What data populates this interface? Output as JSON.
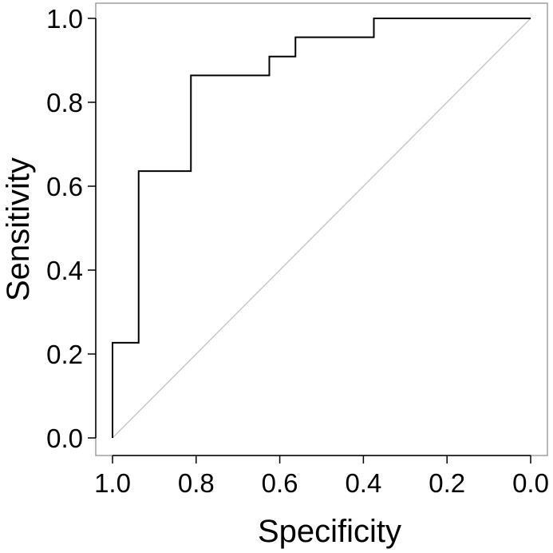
{
  "chart_data": {
    "type": "line",
    "title": "",
    "xlabel": "Specificity",
    "ylabel": "Sensitivity",
    "xlim": [
      1.0,
      0.0
    ],
    "ylim": [
      0.0,
      1.0
    ],
    "x_reversed": true,
    "grid": false,
    "legend": "none",
    "x_ticks": [
      {
        "value": 1.0,
        "label": "1.0"
      },
      {
        "value": 0.8,
        "label": "0.8"
      },
      {
        "value": 0.6,
        "label": "0.6"
      },
      {
        "value": 0.4,
        "label": "0.4"
      },
      {
        "value": 0.2,
        "label": "0.2"
      },
      {
        "value": 0.0,
        "label": "0.0"
      }
    ],
    "y_ticks": [
      {
        "value": 0.0,
        "label": "0.0"
      },
      {
        "value": 0.2,
        "label": "0.2"
      },
      {
        "value": 0.4,
        "label": "0.4"
      },
      {
        "value": 0.6,
        "label": "0.6"
      },
      {
        "value": 0.8,
        "label": "0.8"
      },
      {
        "value": 1.0,
        "label": "1.0"
      }
    ],
    "series": [
      {
        "color": "#000000",
        "points": [
          {
            "specificity": 1.0,
            "sensitivity": 0.0
          },
          {
            "specificity": 1.0,
            "sensitivity": 0.227
          },
          {
            "specificity": 0.9375,
            "sensitivity": 0.227
          },
          {
            "specificity": 0.9375,
            "sensitivity": 0.636
          },
          {
            "specificity": 0.8125,
            "sensitivity": 0.636
          },
          {
            "specificity": 0.8125,
            "sensitivity": 0.864
          },
          {
            "specificity": 0.625,
            "sensitivity": 0.864
          },
          {
            "specificity": 0.625,
            "sensitivity": 0.909
          },
          {
            "specificity": 0.5625,
            "sensitivity": 0.909
          },
          {
            "specificity": 0.5625,
            "sensitivity": 0.955
          },
          {
            "specificity": 0.375,
            "sensitivity": 0.955
          },
          {
            "specificity": 0.375,
            "sensitivity": 1.0
          },
          {
            "specificity": 0.0,
            "sensitivity": 1.0
          }
        ]
      },
      {
        "color": "#c8c8c8",
        "points": [
          {
            "specificity": 1.0,
            "sensitivity": 0.0
          },
          {
            "specificity": 0.0,
            "sensitivity": 1.0
          }
        ]
      }
    ]
  }
}
